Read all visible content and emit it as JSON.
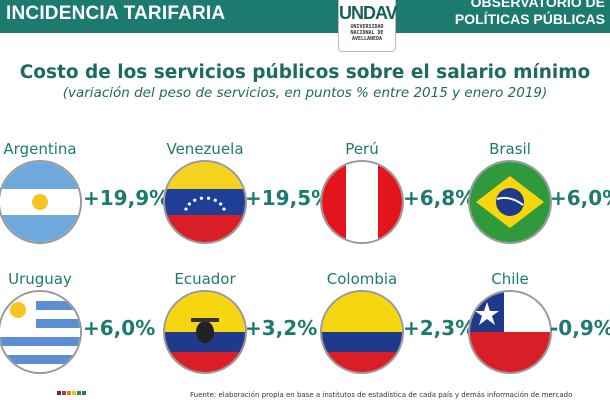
{
  "header": {
    "title": "INCIDENCIA TARIFARIA",
    "logo_mark": "UNDAV",
    "logo_text": [
      "UNIVERSIDAD",
      "NACIONAL DE",
      "AVELLANEDA"
    ],
    "observatory": [
      "OBSERVATORIO DE",
      "POLÍTICAS PÚBLICAS"
    ],
    "color": "#1d7a6f"
  },
  "title": "Costo de los servicios públicos sobre el salario mínimo",
  "subtitle": "(variación del peso de servicios, en puntos % entre 2015 y enero 2019)",
  "countries": [
    {
      "name": "Argentina",
      "value": "+19,9%",
      "flag": "argentina-flag"
    },
    {
      "name": "Venezuela",
      "value": "+19,5%",
      "flag": "venezuela-flag"
    },
    {
      "name": "Perú",
      "value": "+6,8%",
      "flag": "peru-flag"
    },
    {
      "name": "Brasil",
      "value": "+6,0%",
      "flag": "brazil-flag"
    },
    {
      "name": "Uruguay",
      "value": "+6,0%",
      "flag": "uruguay-flag"
    },
    {
      "name": "Ecuador",
      "value": "+3,2%",
      "flag": "ecuador-flag"
    },
    {
      "name": "Colombia",
      "value": "+2,3%",
      "flag": "colombia-flag"
    },
    {
      "name": "Chile",
      "value": "-0,9%",
      "flag": "chile-flag"
    }
  ],
  "source": "Fuente: elaboración propia en base a institutos de estadística de cada país y demás información de mercado"
}
